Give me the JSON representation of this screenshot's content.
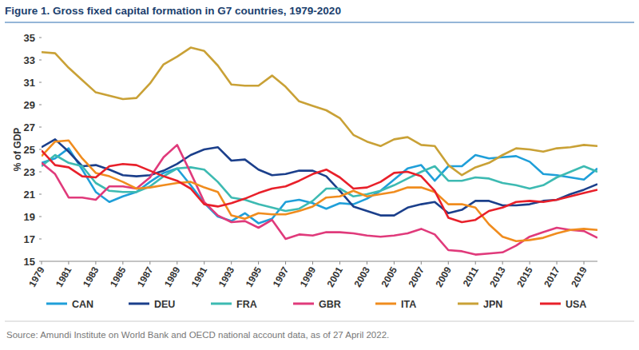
{
  "chart_data": {
    "type": "line",
    "title": "Figure 1. Gross fixed capital formation in G7 countries, 1979-2020",
    "y_label": "% of GDP",
    "source": "Source: Amundi Institute on World Bank and OECD national account data, as of 27 April 2022.",
    "x": [
      1979,
      1980,
      1981,
      1982,
      1983,
      1984,
      1985,
      1986,
      1987,
      1988,
      1989,
      1990,
      1991,
      1992,
      1993,
      1994,
      1995,
      1996,
      1997,
      1998,
      1999,
      2000,
      2001,
      2002,
      2003,
      2004,
      2005,
      2006,
      2007,
      2008,
      2009,
      2010,
      2011,
      2012,
      2013,
      2014,
      2015,
      2016,
      2017,
      2018,
      2019,
      2020
    ],
    "xlim": [
      1979,
      2020
    ],
    "xticks": [
      1979,
      1981,
      1983,
      1985,
      1987,
      1989,
      1991,
      1993,
      1995,
      1997,
      1999,
      2001,
      2003,
      2005,
      2007,
      2009,
      2011,
      2013,
      2015,
      2017,
      2019
    ],
    "ylim": [
      15,
      35
    ],
    "yticks": [
      15,
      17,
      19,
      21,
      23,
      25,
      27,
      29,
      31,
      33,
      35
    ],
    "grid": false,
    "legend": "bottom",
    "series": [
      {
        "name": "CAN",
        "color": "#1f9fd9",
        "values": [
          23.8,
          24.2,
          25.1,
          23.2,
          21.2,
          20.3,
          20.8,
          21.2,
          22.1,
          22.9,
          23.3,
          21.8,
          20.2,
          19.0,
          18.6,
          19.3,
          18.4,
          18.8,
          20.3,
          20.5,
          20.2,
          19.7,
          20.2,
          20.1,
          20.6,
          21.3,
          22.3,
          23.3,
          23.6,
          22.2,
          23.5,
          23.5,
          24.5,
          24.2,
          24.3,
          24.4,
          23.9,
          22.8,
          22.7,
          22.5,
          22.3,
          23.3
        ]
      },
      {
        "name": "DEU",
        "color": "#1b3f8b",
        "values": [
          25.2,
          25.9,
          24.8,
          23.5,
          23.6,
          23.2,
          22.7,
          22.6,
          22.7,
          23.1,
          23.7,
          24.5,
          25.0,
          25.2,
          24.0,
          24.1,
          23.2,
          22.7,
          22.8,
          23.1,
          23.1,
          22.6,
          21.3,
          19.9,
          19.5,
          19.1,
          19.1,
          19.8,
          20.1,
          20.3,
          19.3,
          19.6,
          20.4,
          20.4,
          20.0,
          20.0,
          20.1,
          20.4,
          20.5,
          21.0,
          21.4,
          21.9
        ]
      },
      {
        "name": "FRA",
        "color": "#3dbab2",
        "values": [
          23.5,
          24.5,
          23.8,
          23.5,
          22.0,
          21.3,
          21.2,
          21.2,
          21.7,
          22.6,
          23.3,
          23.4,
          23.2,
          22.1,
          20.7,
          20.5,
          20.1,
          19.8,
          19.5,
          19.7,
          20.4,
          21.5,
          21.5,
          20.8,
          21.0,
          21.3,
          21.8,
          22.4,
          23.0,
          23.5,
          22.2,
          22.2,
          22.5,
          22.4,
          22.0,
          21.8,
          21.5,
          21.8,
          22.5,
          23.0,
          23.5,
          23.0
        ]
      },
      {
        "name": "GBR",
        "color": "#e03a7b",
        "values": [
          23.8,
          22.8,
          20.7,
          20.7,
          20.5,
          21.7,
          21.7,
          21.5,
          22.5,
          24.3,
          25.4,
          22.9,
          20.3,
          19.1,
          18.5,
          18.6,
          18.0,
          18.7,
          17.0,
          17.4,
          17.3,
          17.6,
          17.6,
          17.5,
          17.3,
          17.2,
          17.3,
          17.5,
          17.9,
          17.4,
          16.0,
          15.9,
          15.6,
          15.7,
          15.8,
          16.4,
          17.2,
          17.6,
          18.0,
          17.8,
          17.7,
          17.1
        ]
      },
      {
        "name": "ITA",
        "color": "#f08c1e",
        "values": [
          24.4,
          25.7,
          25.8,
          24.2,
          22.9,
          22.6,
          22.1,
          21.5,
          21.6,
          21.8,
          22.0,
          22.1,
          21.6,
          21.2,
          19.1,
          18.8,
          19.3,
          19.2,
          19.2,
          19.5,
          19.9,
          20.7,
          20.8,
          21.3,
          20.8,
          21.0,
          21.2,
          21.6,
          21.6,
          21.2,
          20.1,
          20.1,
          19.8,
          18.3,
          17.2,
          16.8,
          16.9,
          17.1,
          17.5,
          17.8,
          17.9,
          17.8
        ]
      },
      {
        "name": "JPN",
        "color": "#c9a136",
        "values": [
          33.7,
          33.6,
          32.3,
          31.2,
          30.1,
          29.8,
          29.5,
          29.6,
          30.9,
          32.6,
          33.3,
          34.1,
          33.8,
          32.5,
          30.8,
          30.7,
          30.7,
          31.6,
          30.6,
          29.3,
          28.9,
          28.5,
          27.8,
          26.3,
          25.7,
          25.3,
          25.9,
          26.1,
          25.4,
          25.3,
          23.6,
          22.7,
          23.4,
          23.8,
          24.5,
          25.1,
          25.0,
          24.8,
          25.1,
          25.2,
          25.4,
          25.3
        ]
      },
      {
        "name": "USA",
        "color": "#e8202a",
        "values": [
          24.9,
          23.6,
          23.4,
          22.6,
          22.5,
          23.5,
          23.7,
          23.6,
          23.1,
          22.6,
          22.2,
          21.5,
          20.1,
          19.9,
          20.2,
          20.6,
          21.1,
          21.5,
          21.7,
          22.2,
          22.8,
          23.2,
          22.5,
          21.5,
          21.6,
          22.1,
          22.9,
          23.0,
          22.6,
          21.3,
          18.9,
          18.5,
          18.7,
          19.5,
          19.8,
          20.3,
          20.4,
          20.3,
          20.5,
          20.8,
          21.1,
          21.4
        ]
      }
    ]
  }
}
